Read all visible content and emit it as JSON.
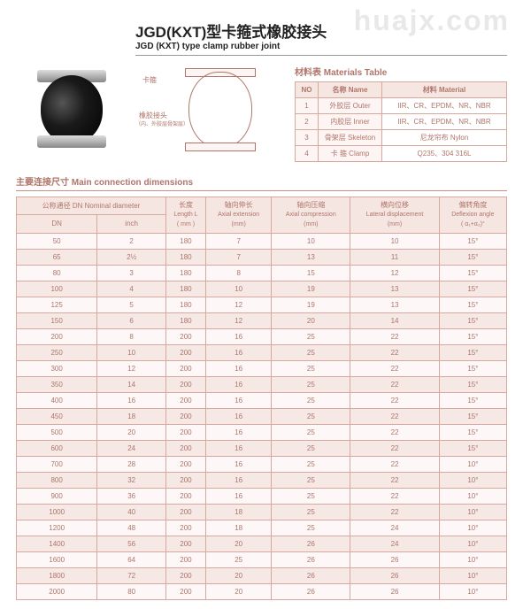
{
  "watermark": "huajx.com",
  "header": {
    "title_cn": "JGD(KXT)型卡箍式橡胶接头",
    "title_en": "JGD (KXT) type clamp rubber joint"
  },
  "diagram": {
    "label_clamp": "卡箍",
    "label_joint": "橡胶接头",
    "label_joint_sub": "（内、外胶层骨架层）"
  },
  "materials": {
    "title": "材料表  Materials Table",
    "headers": {
      "no": "NO",
      "name": "名称 Name",
      "material": "材料 Material"
    },
    "rows": [
      {
        "no": "1",
        "name": "外胶层 Outer",
        "material": "IIR、CR、EPDM、NR、NBR"
      },
      {
        "no": "2",
        "name": "内胶层 Inner",
        "material": "IIR、CR、EPDM、NR、NBR"
      },
      {
        "no": "3",
        "name": "骨架层 Skeleton",
        "material": "尼龙帘布 Nylon"
      },
      {
        "no": "4",
        "name": "卡 箍 Clamp",
        "material": "Q235、304 316L"
      }
    ]
  },
  "main": {
    "title": "主要连接尺寸   Main connection dimensions",
    "headers": {
      "dn_group": "公称通径 DN Nominal diameter",
      "dn": "DN",
      "inch": "inch",
      "length": "长度",
      "length_en": "Length L",
      "length_u": "( mm )",
      "ext": "轴向伸长",
      "ext_en": "Axial extension",
      "ext_u": "(mm)",
      "comp": "轴向压缩",
      "comp_en": "Axial compression",
      "comp_u": "(mm)",
      "lat": "横向位移",
      "lat_en": "Lateral displacement",
      "lat_u": "(mm)",
      "ang": "偏转角度",
      "ang_en": "Deflexion angle",
      "ang_u": "( α₁+α₂)°"
    },
    "rows": [
      {
        "dn": "50",
        "inch": "2",
        "len": "180",
        "ext": "7",
        "comp": "10",
        "lat": "10",
        "ang": "15°"
      },
      {
        "dn": "65",
        "inch": "2½",
        "len": "180",
        "ext": "7",
        "comp": "13",
        "lat": "11",
        "ang": "15°"
      },
      {
        "dn": "80",
        "inch": "3",
        "len": "180",
        "ext": "8",
        "comp": "15",
        "lat": "12",
        "ang": "15°"
      },
      {
        "dn": "100",
        "inch": "4",
        "len": "180",
        "ext": "10",
        "comp": "19",
        "lat": "13",
        "ang": "15°"
      },
      {
        "dn": "125",
        "inch": "5",
        "len": "180",
        "ext": "12",
        "comp": "19",
        "lat": "13",
        "ang": "15°"
      },
      {
        "dn": "150",
        "inch": "6",
        "len": "180",
        "ext": "12",
        "comp": "20",
        "lat": "14",
        "ang": "15°"
      },
      {
        "dn": "200",
        "inch": "8",
        "len": "200",
        "ext": "16",
        "comp": "25",
        "lat": "22",
        "ang": "15°"
      },
      {
        "dn": "250",
        "inch": "10",
        "len": "200",
        "ext": "16",
        "comp": "25",
        "lat": "22",
        "ang": "15°"
      },
      {
        "dn": "300",
        "inch": "12",
        "len": "200",
        "ext": "16",
        "comp": "25",
        "lat": "22",
        "ang": "15°"
      },
      {
        "dn": "350",
        "inch": "14",
        "len": "200",
        "ext": "16",
        "comp": "25",
        "lat": "22",
        "ang": "15°"
      },
      {
        "dn": "400",
        "inch": "16",
        "len": "200",
        "ext": "16",
        "comp": "25",
        "lat": "22",
        "ang": "15°"
      },
      {
        "dn": "450",
        "inch": "18",
        "len": "200",
        "ext": "16",
        "comp": "25",
        "lat": "22",
        "ang": "15°"
      },
      {
        "dn": "500",
        "inch": "20",
        "len": "200",
        "ext": "16",
        "comp": "25",
        "lat": "22",
        "ang": "15°"
      },
      {
        "dn": "600",
        "inch": "24",
        "len": "200",
        "ext": "16",
        "comp": "25",
        "lat": "22",
        "ang": "15°"
      },
      {
        "dn": "700",
        "inch": "28",
        "len": "200",
        "ext": "16",
        "comp": "25",
        "lat": "22",
        "ang": "10°"
      },
      {
        "dn": "800",
        "inch": "32",
        "len": "200",
        "ext": "16",
        "comp": "25",
        "lat": "22",
        "ang": "10°"
      },
      {
        "dn": "900",
        "inch": "36",
        "len": "200",
        "ext": "16",
        "comp": "25",
        "lat": "22",
        "ang": "10°"
      },
      {
        "dn": "1000",
        "inch": "40",
        "len": "200",
        "ext": "18",
        "comp": "25",
        "lat": "22",
        "ang": "10°"
      },
      {
        "dn": "1200",
        "inch": "48",
        "len": "200",
        "ext": "18",
        "comp": "25",
        "lat": "24",
        "ang": "10°"
      },
      {
        "dn": "1400",
        "inch": "56",
        "len": "200",
        "ext": "20",
        "comp": "26",
        "lat": "24",
        "ang": "10°"
      },
      {
        "dn": "1600",
        "inch": "64",
        "len": "200",
        "ext": "25",
        "comp": "26",
        "lat": "26",
        "ang": "10°"
      },
      {
        "dn": "1800",
        "inch": "72",
        "len": "200",
        "ext": "20",
        "comp": "26",
        "lat": "26",
        "ang": "10°"
      },
      {
        "dn": "2000",
        "inch": "80",
        "len": "200",
        "ext": "20",
        "comp": "26",
        "lat": "26",
        "ang": "10°"
      }
    ]
  }
}
